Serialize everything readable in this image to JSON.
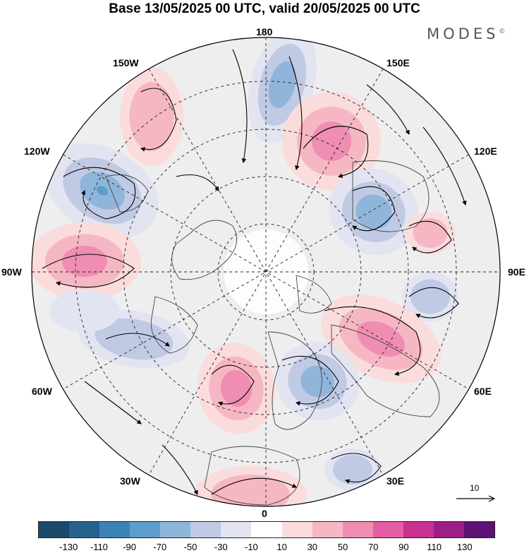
{
  "title": "Base 13/05/2025 00 UTC, valid 20/05/2025 00 UTC",
  "brand": "MODES",
  "brand_mark": "©",
  "longitude_labels": {
    "top": "180",
    "bottom": "0",
    "left": "90W",
    "right": "90E",
    "upper_left_outer": "150W",
    "upper_left_inner": "120W",
    "upper_right_outer": "150E",
    "upper_right_inner": "120E",
    "lower_left_inner": "60W",
    "lower_left_outer": "30W",
    "lower_right_inner": "60E",
    "lower_right_outer": "30E"
  },
  "reference_vector": {
    "label": "10",
    "icon": "arrow-right-icon"
  },
  "colorbar": {
    "colors": [
      "#1b4a6b",
      "#27628f",
      "#3b82b6",
      "#5d9dc9",
      "#90b5da",
      "#c0cae4",
      "#e3e4f1",
      "#ffffff",
      "#fbdcdc",
      "#f6b7c4",
      "#ef8db2",
      "#e45ea5",
      "#c93192",
      "#9b1f86",
      "#5e1374"
    ],
    "tick_labels": [
      "-130",
      "-110",
      "-90",
      "-70",
      "-50",
      "-30",
      "-10",
      "10",
      "30",
      "50",
      "70",
      "90",
      "110",
      "130"
    ]
  }
}
